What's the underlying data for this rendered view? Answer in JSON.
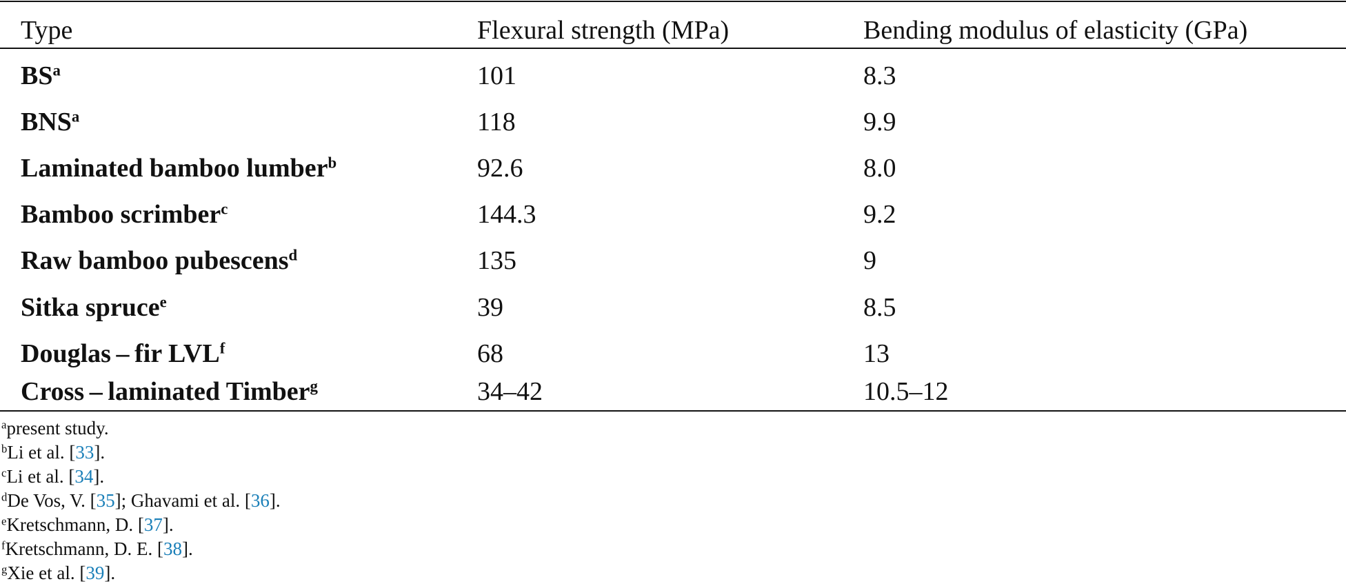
{
  "table": {
    "header": [
      "Type",
      "Flexural strength (MPa)",
      "Bending modulus of elasticity (GPa)"
    ],
    "rows": [
      {
        "name": "BS",
        "note": "a",
        "cells": [
          "101",
          "8.3"
        ]
      },
      {
        "name": "BNS",
        "note": "a",
        "cells": [
          "118",
          "9.9"
        ]
      },
      {
        "name": "Laminated bamboo lumber",
        "note": "b",
        "cells": [
          "92.6",
          "8.0"
        ]
      },
      {
        "name": "Bamboo scrimber",
        "note": "c",
        "cells": [
          "144.3",
          "9.2"
        ]
      },
      {
        "name": "Raw bamboo pubescens",
        "note": "d",
        "cells": [
          "135",
          "9"
        ]
      },
      {
        "name": "Sitka spruce",
        "note": "e",
        "cells": [
          "39",
          "8.5"
        ]
      },
      {
        "name": "Douglas – fir LVL",
        "note": "f",
        "cells": [
          "68",
          "13"
        ]
      },
      {
        "name": "Cross – laminated Timber",
        "note": "g",
        "cells": [
          "34–42",
          "10.5–12"
        ]
      }
    ],
    "footnotes": [
      {
        "mark": "a",
        "segments": [
          {
            "text": "present study."
          }
        ]
      },
      {
        "mark": "b",
        "segments": [
          {
            "text": "Li et al. ["
          },
          {
            "ref": "33"
          },
          {
            "text": "]."
          }
        ]
      },
      {
        "mark": "c",
        "segments": [
          {
            "text": "Li et al. ["
          },
          {
            "ref": "34"
          },
          {
            "text": "]."
          }
        ]
      },
      {
        "mark": "d",
        "segments": [
          {
            "text": "De Vos, V. ["
          },
          {
            "ref": "35"
          },
          {
            "text": "]; Ghavami et al. ["
          },
          {
            "ref": "36"
          },
          {
            "text": "]."
          }
        ]
      },
      {
        "mark": "e",
        "segments": [
          {
            "text": "Kretschmann, D. ["
          },
          {
            "ref": "37"
          },
          {
            "text": "]."
          }
        ]
      },
      {
        "mark": "f",
        "segments": [
          {
            "text": "Kretschmann, D. E. ["
          },
          {
            "ref": "38"
          },
          {
            "text": "]."
          }
        ]
      },
      {
        "mark": "g",
        "segments": [
          {
            "text": "Xie et al. ["
          },
          {
            "ref": "39"
          },
          {
            "text": "]."
          }
        ]
      }
    ]
  }
}
